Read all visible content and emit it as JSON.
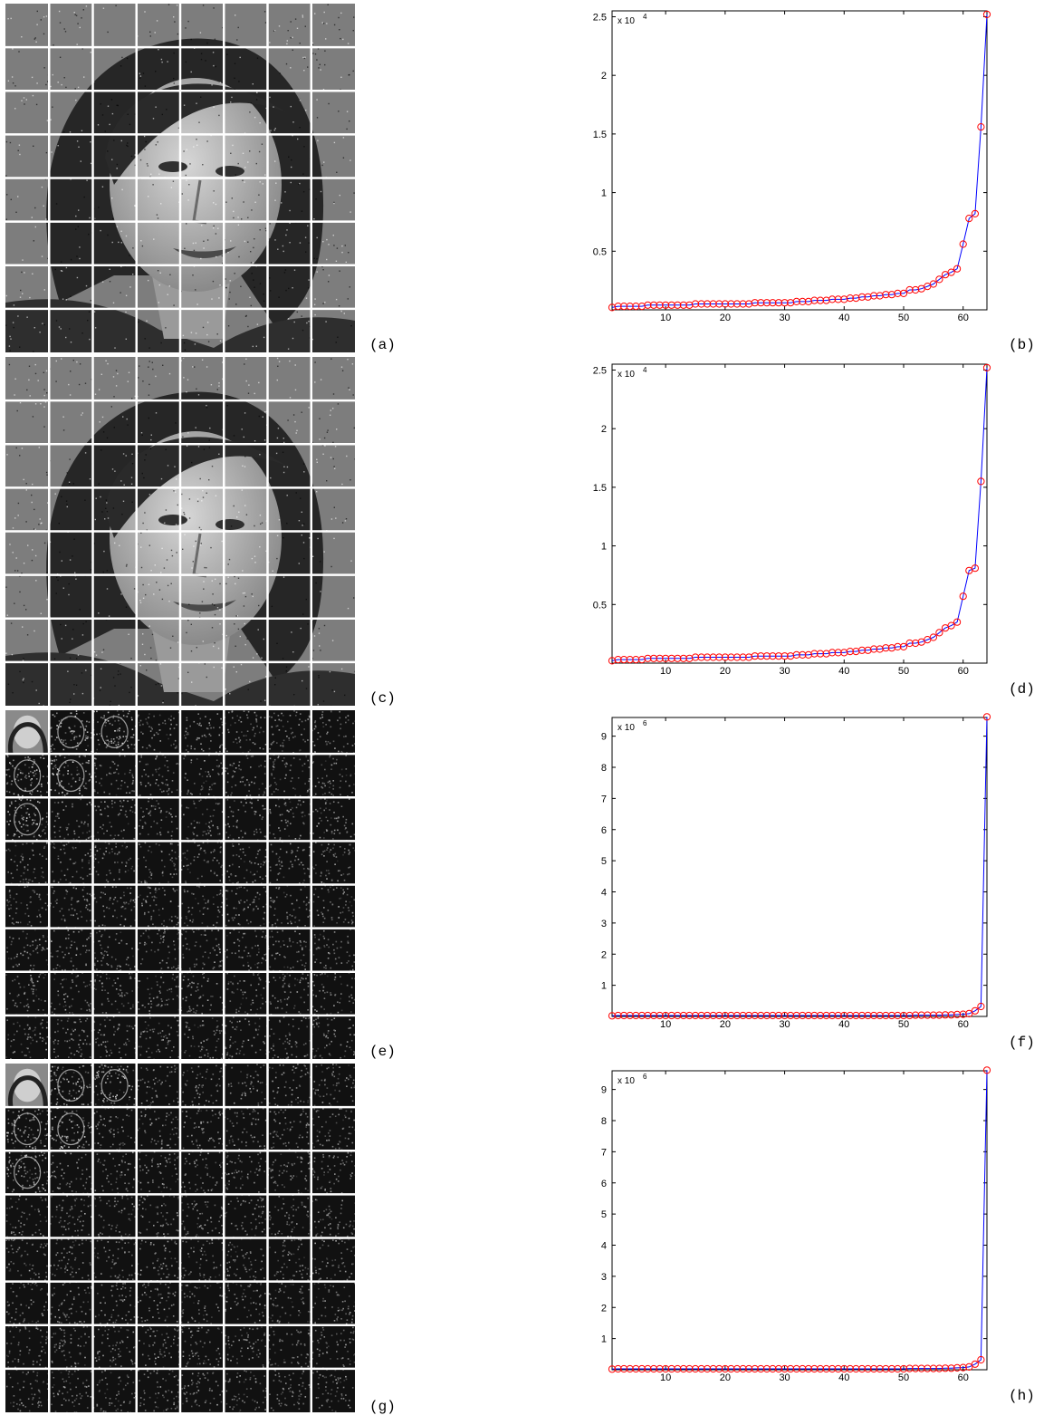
{
  "panels": [
    {
      "label": "(a)",
      "kind": "image",
      "variant": "face-grid"
    },
    {
      "label": "(b)",
      "kind": "chart"
    },
    {
      "label": "(c)",
      "kind": "image",
      "variant": "face-grid"
    },
    {
      "label": "(d)",
      "kind": "chart"
    },
    {
      "label": "(e)",
      "kind": "image",
      "variant": "dct-blocks"
    },
    {
      "label": "(f)",
      "kind": "chart"
    },
    {
      "label": "(g)",
      "kind": "image",
      "variant": "dct-blocks"
    },
    {
      "label": "(h)",
      "kind": "chart"
    }
  ],
  "colors": {
    "line": "#0000ff",
    "marker": "#ff0000",
    "grid": "#ffffff"
  },
  "chart_data": [
    {
      "panel": "(b)",
      "type": "line",
      "multiplier_base": "x 10",
      "multiplier_exp": "4",
      "xlim": [
        1,
        64
      ],
      "ylim": [
        0,
        2.55
      ],
      "xticks": [
        10,
        20,
        30,
        40,
        50,
        60
      ],
      "yticks": [
        0.5,
        1,
        1.5,
        2,
        2.5
      ],
      "ytick_labels": [
        "0.5",
        "1",
        "1.5",
        "2",
        "2.5"
      ],
      "x": [
        1,
        2,
        3,
        4,
        5,
        6,
        7,
        8,
        9,
        10,
        11,
        12,
        13,
        14,
        15,
        16,
        17,
        18,
        19,
        20,
        21,
        22,
        23,
        24,
        25,
        26,
        27,
        28,
        29,
        30,
        31,
        32,
        33,
        34,
        35,
        36,
        37,
        38,
        39,
        40,
        41,
        42,
        43,
        44,
        45,
        46,
        47,
        48,
        49,
        50,
        51,
        52,
        53,
        54,
        55,
        56,
        57,
        58,
        59,
        60,
        61,
        62,
        63,
        64
      ],
      "y": [
        0.02,
        0.03,
        0.03,
        0.03,
        0.03,
        0.03,
        0.04,
        0.04,
        0.04,
        0.04,
        0.04,
        0.04,
        0.04,
        0.04,
        0.05,
        0.05,
        0.05,
        0.05,
        0.05,
        0.05,
        0.05,
        0.05,
        0.05,
        0.05,
        0.06,
        0.06,
        0.06,
        0.06,
        0.06,
        0.06,
        0.06,
        0.07,
        0.07,
        0.07,
        0.08,
        0.08,
        0.08,
        0.09,
        0.09,
        0.09,
        0.1,
        0.1,
        0.11,
        0.11,
        0.12,
        0.12,
        0.13,
        0.13,
        0.14,
        0.14,
        0.17,
        0.17,
        0.18,
        0.2,
        0.22,
        0.26,
        0.3,
        0.32,
        0.35,
        0.56,
        0.78,
        0.82,
        1.56,
        2.52
      ]
    },
    {
      "panel": "(d)",
      "type": "line",
      "multiplier_base": "x 10",
      "multiplier_exp": "4",
      "xlim": [
        1,
        64
      ],
      "ylim": [
        0,
        2.55
      ],
      "xticks": [
        10,
        20,
        30,
        40,
        50,
        60
      ],
      "yticks": [
        0.5,
        1,
        1.5,
        2,
        2.5
      ],
      "ytick_labels": [
        "0.5",
        "1",
        "1.5",
        "2",
        "2.5"
      ],
      "x": [
        1,
        2,
        3,
        4,
        5,
        6,
        7,
        8,
        9,
        10,
        11,
        12,
        13,
        14,
        15,
        16,
        17,
        18,
        19,
        20,
        21,
        22,
        23,
        24,
        25,
        26,
        27,
        28,
        29,
        30,
        31,
        32,
        33,
        34,
        35,
        36,
        37,
        38,
        39,
        40,
        41,
        42,
        43,
        44,
        45,
        46,
        47,
        48,
        49,
        50,
        51,
        52,
        53,
        54,
        55,
        56,
        57,
        58,
        59,
        60,
        61,
        62,
        63,
        64
      ],
      "y": [
        0.02,
        0.03,
        0.03,
        0.03,
        0.03,
        0.03,
        0.04,
        0.04,
        0.04,
        0.04,
        0.04,
        0.04,
        0.04,
        0.04,
        0.05,
        0.05,
        0.05,
        0.05,
        0.05,
        0.05,
        0.05,
        0.05,
        0.05,
        0.05,
        0.06,
        0.06,
        0.06,
        0.06,
        0.06,
        0.06,
        0.06,
        0.07,
        0.07,
        0.07,
        0.08,
        0.08,
        0.08,
        0.09,
        0.09,
        0.09,
        0.1,
        0.1,
        0.11,
        0.11,
        0.12,
        0.12,
        0.13,
        0.13,
        0.14,
        0.14,
        0.17,
        0.17,
        0.18,
        0.2,
        0.22,
        0.26,
        0.3,
        0.32,
        0.35,
        0.57,
        0.79,
        0.81,
        1.55,
        2.52
      ]
    },
    {
      "panel": "(f)",
      "type": "line",
      "multiplier_base": "x 10",
      "multiplier_exp": "6",
      "xlim": [
        1,
        64
      ],
      "ylim": [
        0,
        9.6
      ],
      "xticks": [
        10,
        20,
        30,
        40,
        50,
        60
      ],
      "yticks": [
        1,
        2,
        3,
        4,
        5,
        6,
        7,
        8,
        9
      ],
      "ytick_labels": [
        "1",
        "2",
        "3",
        "4",
        "5",
        "6",
        "7",
        "8",
        "9"
      ],
      "x": [
        1,
        2,
        3,
        4,
        5,
        6,
        7,
        8,
        9,
        10,
        11,
        12,
        13,
        14,
        15,
        16,
        17,
        18,
        19,
        20,
        21,
        22,
        23,
        24,
        25,
        26,
        27,
        28,
        29,
        30,
        31,
        32,
        33,
        34,
        35,
        36,
        37,
        38,
        39,
        40,
        41,
        42,
        43,
        44,
        45,
        46,
        47,
        48,
        49,
        50,
        51,
        52,
        53,
        54,
        55,
        56,
        57,
        58,
        59,
        60,
        61,
        62,
        63,
        64
      ],
      "y": [
        0.02,
        0.03,
        0.03,
        0.03,
        0.03,
        0.03,
        0.03,
        0.03,
        0.03,
        0.03,
        0.03,
        0.03,
        0.03,
        0.03,
        0.03,
        0.03,
        0.03,
        0.03,
        0.03,
        0.03,
        0.03,
        0.03,
        0.03,
        0.03,
        0.03,
        0.03,
        0.03,
        0.03,
        0.03,
        0.03,
        0.03,
        0.03,
        0.03,
        0.03,
        0.03,
        0.03,
        0.03,
        0.03,
        0.03,
        0.03,
        0.03,
        0.03,
        0.03,
        0.03,
        0.03,
        0.03,
        0.03,
        0.03,
        0.03,
        0.03,
        0.03,
        0.04,
        0.04,
        0.04,
        0.04,
        0.04,
        0.05,
        0.05,
        0.06,
        0.07,
        0.09,
        0.18,
        0.32,
        9.62
      ]
    },
    {
      "panel": "(h)",
      "type": "line",
      "multiplier_base": "x 10",
      "multiplier_exp": "6",
      "xlim": [
        1,
        64
      ],
      "ylim": [
        0,
        9.6
      ],
      "xticks": [
        10,
        20,
        30,
        40,
        50,
        60
      ],
      "yticks": [
        1,
        2,
        3,
        4,
        5,
        6,
        7,
        8,
        9
      ],
      "ytick_labels": [
        "1",
        "2",
        "3",
        "4",
        "5",
        "6",
        "7",
        "8",
        "9"
      ],
      "x": [
        1,
        2,
        3,
        4,
        5,
        6,
        7,
        8,
        9,
        10,
        11,
        12,
        13,
        14,
        15,
        16,
        17,
        18,
        19,
        20,
        21,
        22,
        23,
        24,
        25,
        26,
        27,
        28,
        29,
        30,
        31,
        32,
        33,
        34,
        35,
        36,
        37,
        38,
        39,
        40,
        41,
        42,
        43,
        44,
        45,
        46,
        47,
        48,
        49,
        50,
        51,
        52,
        53,
        54,
        55,
        56,
        57,
        58,
        59,
        60,
        61,
        62,
        63,
        64
      ],
      "y": [
        0.02,
        0.03,
        0.03,
        0.03,
        0.03,
        0.03,
        0.03,
        0.03,
        0.03,
        0.03,
        0.03,
        0.03,
        0.03,
        0.03,
        0.03,
        0.03,
        0.03,
        0.03,
        0.03,
        0.03,
        0.03,
        0.03,
        0.03,
        0.03,
        0.03,
        0.03,
        0.03,
        0.03,
        0.03,
        0.03,
        0.03,
        0.03,
        0.03,
        0.03,
        0.03,
        0.03,
        0.03,
        0.03,
        0.03,
        0.03,
        0.03,
        0.03,
        0.03,
        0.03,
        0.03,
        0.03,
        0.03,
        0.03,
        0.03,
        0.03,
        0.04,
        0.04,
        0.04,
        0.04,
        0.04,
        0.04,
        0.05,
        0.05,
        0.06,
        0.07,
        0.09,
        0.18,
        0.32,
        9.62
      ]
    }
  ]
}
